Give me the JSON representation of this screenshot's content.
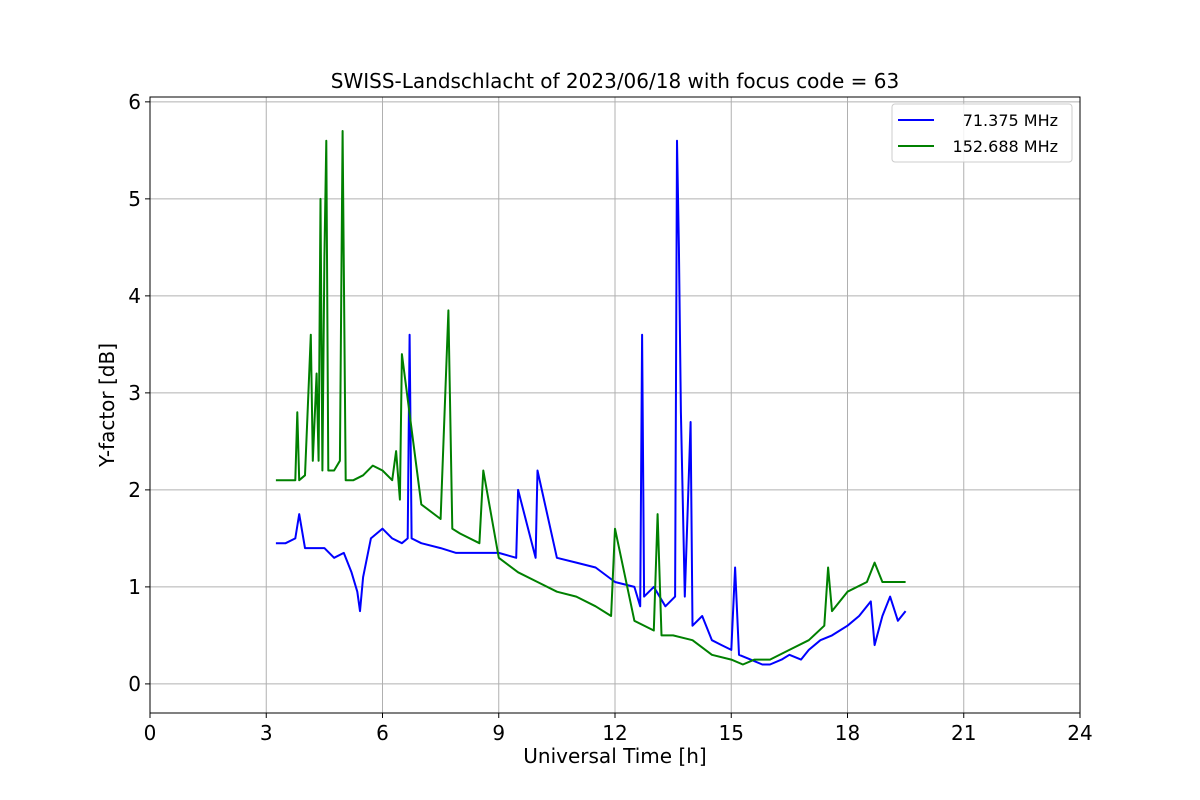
{
  "chart_data": {
    "type": "line",
    "title": "SWISS-Landschlacht of 2023/06/18 with focus code = 63",
    "xlabel": "Universal Time [h]",
    "ylabel": "Y-factor [dB]",
    "xlim": [
      0,
      24
    ],
    "ylim": [
      -0.3,
      6.05
    ],
    "xticks": [
      0,
      3,
      6,
      9,
      12,
      15,
      18,
      21,
      24
    ],
    "yticks": [
      0,
      1,
      2,
      3,
      4,
      5,
      6
    ],
    "grid": true,
    "legend_position": "top-right",
    "series": [
      {
        "name": "71.375 MHz",
        "color": "#0000ff",
        "x": [
          3.25,
          3.5,
          3.75,
          3.85,
          4.0,
          4.25,
          4.5,
          4.75,
          5.0,
          5.2,
          5.35,
          5.42,
          5.5,
          5.7,
          6.0,
          6.25,
          6.5,
          6.65,
          6.7,
          6.75,
          7.0,
          7.5,
          7.9,
          8.0,
          8.5,
          9.0,
          9.45,
          9.5,
          9.95,
          10.0,
          10.5,
          11.0,
          11.5,
          12.0,
          12.5,
          12.65,
          12.7,
          12.75,
          13.0,
          13.3,
          13.55,
          13.6,
          13.65,
          13.7,
          13.8,
          13.95,
          14.0,
          14.25,
          14.5,
          14.75,
          15.0,
          15.1,
          15.2,
          15.5,
          15.8,
          16.0,
          16.3,
          16.5,
          16.8,
          17.0,
          17.3,
          17.6,
          17.8,
          18.0,
          18.3,
          18.6,
          18.7,
          18.9,
          19.1,
          19.3,
          19.5
        ],
        "values": [
          1.45,
          1.45,
          1.5,
          1.75,
          1.4,
          1.4,
          1.4,
          1.3,
          1.35,
          1.15,
          0.95,
          0.75,
          1.1,
          1.5,
          1.6,
          1.5,
          1.45,
          1.5,
          3.6,
          1.5,
          1.45,
          1.4,
          1.35,
          1.35,
          1.35,
          1.35,
          1.3,
          2.0,
          1.3,
          2.2,
          1.3,
          1.25,
          1.2,
          1.05,
          1.0,
          0.8,
          3.6,
          0.9,
          1.0,
          0.8,
          0.9,
          5.6,
          4.5,
          2.8,
          0.9,
          2.7,
          0.6,
          0.7,
          0.45,
          0.4,
          0.35,
          1.2,
          0.3,
          0.25,
          0.2,
          0.2,
          0.25,
          0.3,
          0.25,
          0.35,
          0.45,
          0.5,
          0.55,
          0.6,
          0.7,
          0.85,
          0.4,
          0.7,
          0.9,
          0.65,
          0.75
        ]
      },
      {
        "name": "152.688 MHz",
        "color": "#008000",
        "x": [
          3.25,
          3.5,
          3.75,
          3.8,
          3.85,
          4.0,
          4.15,
          4.2,
          4.3,
          4.35,
          4.4,
          4.45,
          4.5,
          4.55,
          4.6,
          4.75,
          4.9,
          4.97,
          5.05,
          5.25,
          5.5,
          5.75,
          6.0,
          6.25,
          6.35,
          6.45,
          6.5,
          7.0,
          7.5,
          7.7,
          7.8,
          8.0,
          8.5,
          8.6,
          9.0,
          9.5,
          10.0,
          10.5,
          11.0,
          11.5,
          11.9,
          12.0,
          12.5,
          13.0,
          13.1,
          13.2,
          13.5,
          14.0,
          14.5,
          15.0,
          15.3,
          15.6,
          16.0,
          16.5,
          17.0,
          17.4,
          17.5,
          17.6,
          17.8,
          18.0,
          18.5,
          18.7,
          18.9,
          19.2,
          19.5
        ],
        "values": [
          2.1,
          2.1,
          2.1,
          2.8,
          2.1,
          2.15,
          3.6,
          2.3,
          3.2,
          2.3,
          5.0,
          2.2,
          4.4,
          5.6,
          2.2,
          2.2,
          2.3,
          5.7,
          2.1,
          2.1,
          2.15,
          2.25,
          2.2,
          2.1,
          2.4,
          1.9,
          3.4,
          1.85,
          1.7,
          3.85,
          1.6,
          1.55,
          1.45,
          2.2,
          1.3,
          1.15,
          1.05,
          0.95,
          0.9,
          0.8,
          0.7,
          1.6,
          0.65,
          0.55,
          1.75,
          0.5,
          0.5,
          0.45,
          0.3,
          0.25,
          0.2,
          0.25,
          0.25,
          0.35,
          0.45,
          0.6,
          1.2,
          0.75,
          0.85,
          0.95,
          1.05,
          1.25,
          1.05,
          1.05,
          1.05
        ]
      }
    ]
  }
}
